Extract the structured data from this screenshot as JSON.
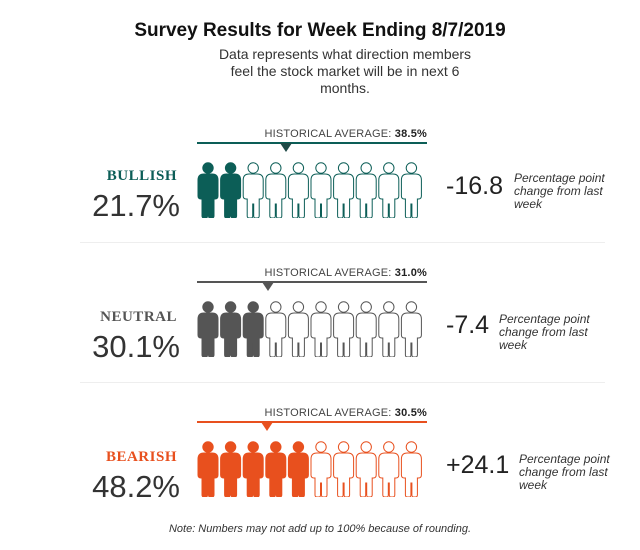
{
  "title": "Survey Results for Week Ending 8/7/2019",
  "subtitle": "Data represents what direction members feel the stock market will be in next 6 months.",
  "note": "Note: Numbers may not add up to 100% because of rounding.",
  "chart_data": {
    "type": "pictograph",
    "icons_per_row": 10,
    "categories": [
      "BULLISH",
      "NEUTRAL",
      "BEARISH"
    ],
    "series": [
      {
        "label": "BULLISH",
        "value": 21.7,
        "value_text": "21.7%",
        "filled_icons": 2,
        "historical_label": "HISTORICAL AVERAGE:",
        "historical_average": 38.5,
        "historical_text": "38.5%",
        "change_text": "-16.8",
        "change_value": -16.8,
        "change_note": "Percentage point change from last week",
        "color": "#0c5e57"
      },
      {
        "label": "NEUTRAL",
        "value": 30.1,
        "value_text": "30.1%",
        "filled_icons": 3,
        "historical_label": "HISTORICAL AVERAGE:",
        "historical_average": 31.0,
        "historical_text": "31.0%",
        "change_text": "-7.4",
        "change_value": -7.4,
        "change_note": "Percentage point change from last week",
        "color": "#555555"
      },
      {
        "label": "BEARISH",
        "value": 48.2,
        "value_text": "48.2%",
        "filled_icons": 5,
        "historical_label": "HISTORICAL AVERAGE:",
        "historical_average": 30.5,
        "historical_text": "30.5%",
        "change_text": "+24.1",
        "change_value": 24.1,
        "change_note": "Percentage point change from last week",
        "color": "#e8501e"
      }
    ]
  }
}
